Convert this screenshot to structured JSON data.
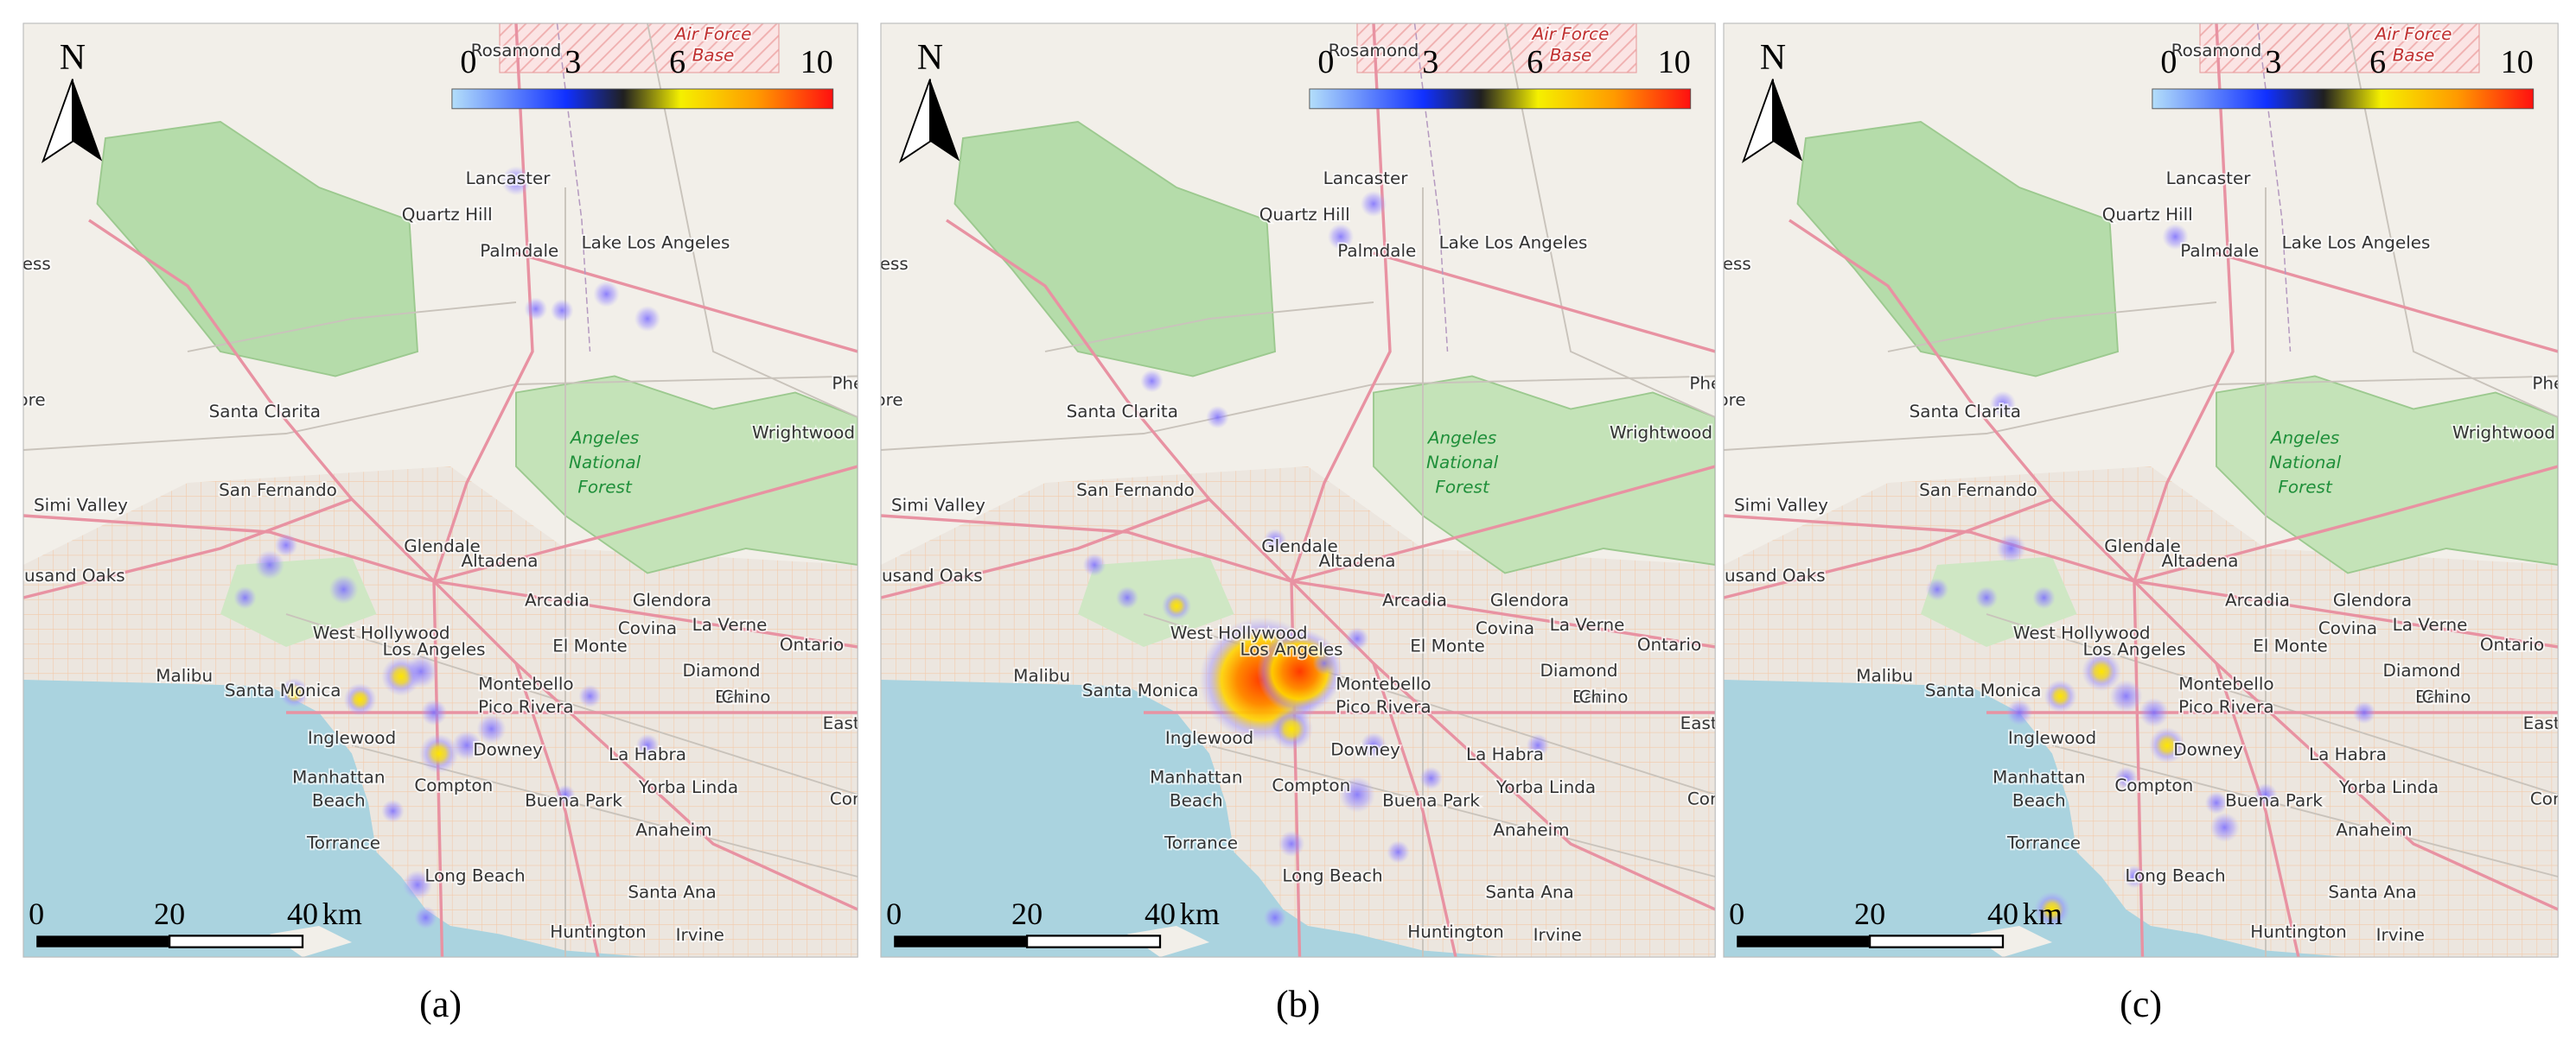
{
  "north": "N",
  "base_label": [
    "Air Force",
    "Base"
  ],
  "legend": {
    "ticks": [
      0,
      3,
      6,
      10
    ]
  },
  "scale_bar": {
    "ticks": [
      0,
      20,
      40
    ],
    "unit": "km"
  },
  "places": [
    "Rosamond",
    "Lancaster",
    "Quartz Hill",
    "Palmdale",
    "Lake Los Angeles",
    "Santa Clarita",
    "Angeles",
    "National",
    "Forest",
    "Wrightwood",
    "Phe",
    "San Fernando",
    "Simi Valley",
    "ousand Oaks",
    "Glendale",
    "Altadena",
    "Arcadia",
    "Glendora",
    "West Hollywood",
    "Covina",
    "La Verne",
    "Los Angeles",
    "El Monte",
    "Ontario",
    "Malibu",
    "Diamond",
    "Bar",
    "Santa Monica",
    "Montebello",
    "Chino",
    "East",
    "Pico Rivera",
    "Inglewood",
    "Downey",
    "La Habra",
    "Cor",
    "Manhattan",
    "Beach",
    "Compton",
    "Buena Park",
    "Yorba Linda",
    "Torrance",
    "Anaheim",
    "Long Beach",
    "Santa Ana",
    "Huntington",
    "Irvine",
    "ess",
    "ore"
  ],
  "panels": [
    {
      "caption": "(a)"
    },
    {
      "caption": "(b)"
    },
    {
      "caption": "(c)"
    }
  ]
}
